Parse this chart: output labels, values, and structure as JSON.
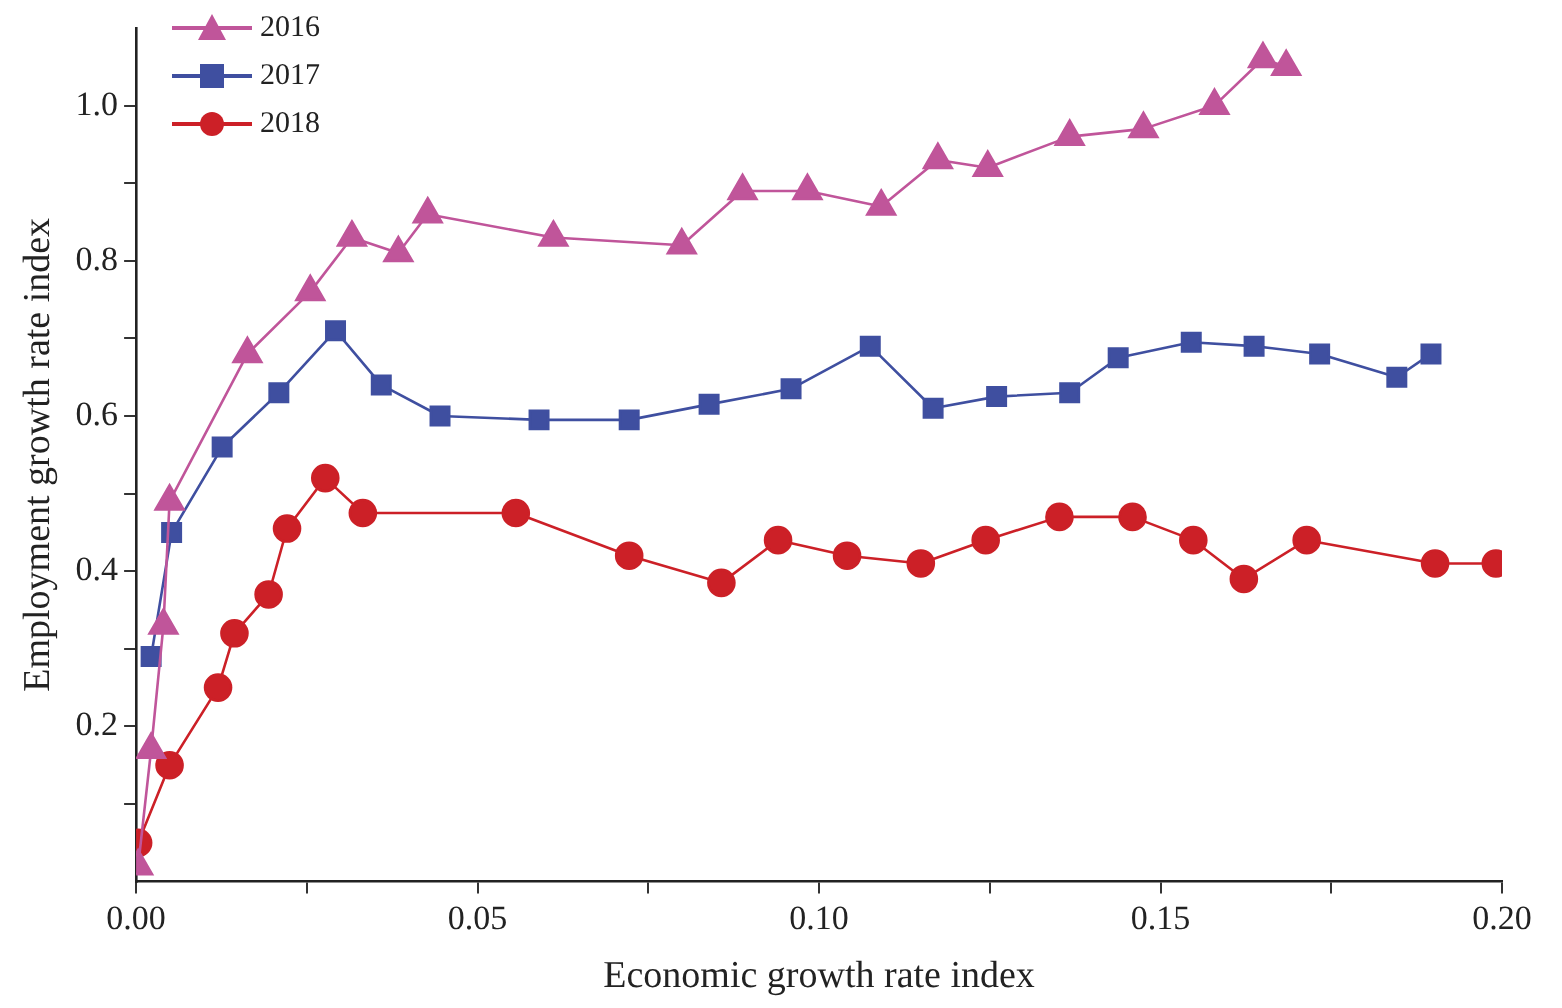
{
  "chart_data": {
    "type": "line",
    "xlabel": "Economic growth rate index",
    "ylabel": "Employment growth rate index",
    "xlim": [
      0,
      0.2
    ],
    "ylim": [
      0,
      1.1
    ],
    "xticks": [
      {
        "value": 0,
        "label": "0.00"
      },
      {
        "value": 0.025,
        "label": null
      },
      {
        "value": 0.05,
        "label": "0.05"
      },
      {
        "value": 0.075,
        "label": null
      },
      {
        "value": 0.1,
        "label": "0.10"
      },
      {
        "value": 0.125,
        "label": null
      },
      {
        "value": 0.15,
        "label": "0.15"
      },
      {
        "value": 0.175,
        "label": null
      },
      {
        "value": 0.2,
        "label": "0.20"
      }
    ],
    "yticks": [
      {
        "value": 0.1,
        "label": null
      },
      {
        "value": 0.2,
        "label": "0.2"
      },
      {
        "value": 0.3,
        "label": null
      },
      {
        "value": 0.4,
        "label": "0.4"
      },
      {
        "value": 0.5,
        "label": null
      },
      {
        "value": 0.6,
        "label": "0.6"
      },
      {
        "value": 0.7,
        "label": null
      },
      {
        "value": 0.8,
        "label": "0.8"
      },
      {
        "value": 0.9,
        "label": null
      },
      {
        "value": 1.0,
        "label": "1.0"
      }
    ],
    "grid": false,
    "legend": "top left",
    "line_style": "solid",
    "series": [
      {
        "name": "2016",
        "color": "#c0559a",
        "marker": "triangle",
        "x": [
          0.0003,
          0.0022,
          0.004,
          0.0049,
          0.0163,
          0.0255,
          0.0316,
          0.0384,
          0.0427,
          0.0611,
          0.0799,
          0.0888,
          0.0983,
          0.1091,
          0.1174,
          0.1247,
          0.1367,
          0.1475,
          0.1579,
          0.165,
          0.1684
        ],
        "values": [
          0.02,
          0.17,
          0.33,
          0.49,
          0.68,
          0.76,
          0.83,
          0.81,
          0.86,
          0.83,
          0.82,
          0.89,
          0.89,
          0.87,
          0.93,
          0.92,
          0.96,
          0.97,
          1.0,
          1.06,
          1.05
        ]
      },
      {
        "name": "2017",
        "color": "#3f4fa0",
        "marker": "square",
        "x": [
          0.0022,
          0.0052,
          0.0126,
          0.0209,
          0.0292,
          0.0359,
          0.0445,
          0.059,
          0.0722,
          0.0839,
          0.0959,
          0.1075,
          0.1167,
          0.126,
          0.1367,
          0.1438,
          0.1545,
          0.1637,
          0.1733,
          0.1846,
          0.1896
        ],
        "values": [
          0.29,
          0.45,
          0.56,
          0.63,
          0.71,
          0.64,
          0.6,
          0.595,
          0.595,
          0.615,
          0.635,
          0.69,
          0.61,
          0.625,
          0.63,
          0.675,
          0.695,
          0.69,
          0.68,
          0.65,
          0.68
        ]
      },
      {
        "name": "2018",
        "color": "#cc2027",
        "marker": "circle",
        "x": [
          0.0003,
          0.0049,
          0.012,
          0.0144,
          0.0194,
          0.0221,
          0.0277,
          0.0332,
          0.0556,
          0.0722,
          0.0857,
          0.094,
          0.1041,
          0.1149,
          0.1244,
          0.1352,
          0.1459,
          0.1548,
          0.1622,
          0.1714,
          0.1902,
          0.1991
        ],
        "values": [
          0.05,
          0.15,
          0.25,
          0.32,
          0.37,
          0.455,
          0.52,
          0.475,
          0.475,
          0.42,
          0.385,
          0.44,
          0.42,
          0.41,
          0.44,
          0.47,
          0.47,
          0.44,
          0.39,
          0.44,
          0.41,
          0.41
        ]
      }
    ]
  }
}
